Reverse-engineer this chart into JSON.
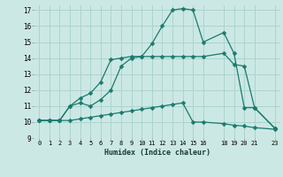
{
  "xlabel": "Humidex (Indice chaleur)",
  "bg_color": "#cce8e4",
  "grid_color": "#aad4cf",
  "line_color": "#1a7a6e",
  "xlim": [
    -0.5,
    23.5
  ],
  "ylim": [
    9,
    17.3
  ],
  "xticks": [
    0,
    1,
    2,
    3,
    4,
    5,
    6,
    7,
    8,
    9,
    10,
    11,
    12,
    13,
    14,
    15,
    16,
    18,
    19,
    20,
    21,
    23
  ],
  "yticks": [
    9,
    10,
    11,
    12,
    13,
    14,
    15,
    16,
    17
  ],
  "line1_x": [
    0,
    1,
    2,
    3,
    4,
    5,
    6,
    7,
    8,
    9,
    10,
    11,
    12,
    13,
    14,
    15,
    16,
    18,
    19,
    20,
    21,
    23
  ],
  "line1_y": [
    10.1,
    10.1,
    10.1,
    11.0,
    11.5,
    11.8,
    12.5,
    13.9,
    14.0,
    14.1,
    14.1,
    14.9,
    16.0,
    17.0,
    17.1,
    17.0,
    15.0,
    15.6,
    14.3,
    10.9,
    10.9,
    9.6
  ],
  "line2_x": [
    0,
    1,
    2,
    3,
    4,
    5,
    6,
    7,
    8,
    9,
    10,
    11,
    12,
    13,
    14,
    15,
    16,
    18,
    19,
    20,
    21,
    23
  ],
  "line2_y": [
    10.1,
    10.1,
    10.1,
    11.0,
    11.2,
    11.0,
    11.4,
    12.0,
    13.5,
    14.0,
    14.1,
    14.1,
    14.1,
    14.1,
    14.1,
    14.1,
    14.1,
    14.3,
    13.6,
    13.5,
    10.9,
    9.6
  ],
  "line3_x": [
    0,
    1,
    2,
    3,
    4,
    5,
    6,
    7,
    8,
    9,
    10,
    11,
    12,
    13,
    14,
    15,
    16,
    18,
    19,
    20,
    21,
    23
  ],
  "line3_y": [
    10.1,
    10.1,
    10.1,
    10.1,
    10.2,
    10.3,
    10.4,
    10.5,
    10.6,
    10.7,
    10.8,
    10.9,
    11.0,
    11.1,
    11.2,
    10.0,
    10.0,
    9.9,
    9.8,
    9.75,
    9.65,
    9.55
  ]
}
